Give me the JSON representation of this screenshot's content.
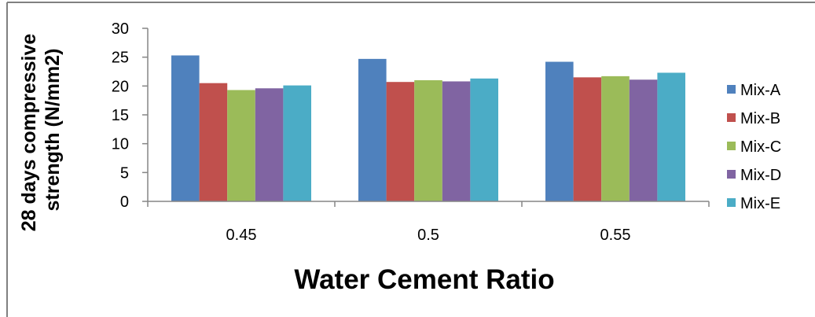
{
  "chart_data": {
    "type": "bar",
    "title": "",
    "xlabel": "Water Cement Ratio",
    "ylabel": "28 days compressive strength (N/mm2)",
    "ylabel_lines": [
      "28 days compressive",
      "strength (N/mm2)"
    ],
    "categories": [
      "0.45",
      "0.5",
      "0.55"
    ],
    "ylim": [
      0,
      30
    ],
    "yticks": [
      "0",
      "5",
      "10",
      "15",
      "20",
      "25",
      "30"
    ],
    "grid": false,
    "legend_position": "right",
    "series": [
      {
        "name": "Mix-A",
        "color": "#4F81BD",
        "values": [
          25.3,
          24.7,
          24.2
        ]
      },
      {
        "name": "Mix-B",
        "color": "#C0504D",
        "values": [
          20.5,
          20.7,
          21.5
        ]
      },
      {
        "name": "Mix-C",
        "color": "#9BBB59",
        "values": [
          19.3,
          21.0,
          21.7
        ]
      },
      {
        "name": "Mix-D",
        "color": "#8064A2",
        "values": [
          19.6,
          20.8,
          21.1
        ]
      },
      {
        "name": "Mix-E",
        "color": "#4BACC6",
        "values": [
          20.1,
          21.3,
          22.3
        ]
      }
    ]
  }
}
